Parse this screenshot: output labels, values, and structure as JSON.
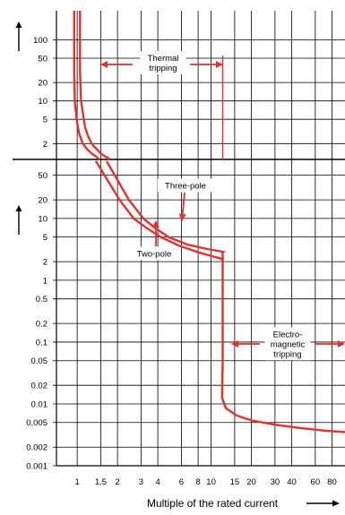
{
  "chart_data": {
    "type": "line",
    "title": "",
    "xlabel": "Multiple of the rated current",
    "ylabel": "",
    "x_scale": "log",
    "xlim": [
      0.7,
      100
    ],
    "x_ticks": [
      1,
      1.5,
      2,
      3,
      4,
      6,
      8,
      10,
      15,
      20,
      30,
      40,
      60,
      80
    ],
    "x_tick_labels": [
      "1",
      "1.5",
      "2",
      "3",
      "4",
      "6",
      "8",
      "10",
      "15",
      "20",
      "30",
      "40",
      "60",
      "80"
    ],
    "grid": true,
    "upper_panel": {
      "y_scale": "log",
      "ylim": [
        1.1,
        300
      ],
      "y_ticks": [
        2,
        5,
        10,
        20,
        50,
        100
      ],
      "y_tick_labels": [
        "2",
        "5",
        "10",
        "20",
        "50",
        "100"
      ]
    },
    "lower_panel": {
      "y_scale": "log",
      "ylim": [
        0.001,
        90
      ],
      "y_ticks": [
        0.001,
        0.002,
        0.005,
        0.01,
        0.02,
        0.05,
        0.1,
        0.2,
        0.5,
        1,
        2,
        5,
        10,
        20,
        50
      ],
      "y_tick_labels": [
        "0.001",
        "0.002",
        "0.005",
        "0.01",
        "0.02",
        "0.05",
        "0.1",
        "0.2",
        "0.5",
        "1",
        "2",
        "5",
        "10",
        "20",
        "50"
      ]
    },
    "series": [
      {
        "name": "Three-pole",
        "color": "#e53030",
        "upper_points": [
          [
            1.05,
            300
          ],
          [
            1.05,
            30
          ],
          [
            1.07,
            10
          ],
          [
            1.12,
            5
          ],
          [
            1.15,
            3.6
          ],
          [
            1.2,
            2.7
          ],
          [
            1.27,
            2.1
          ],
          [
            1.33,
            1.8
          ],
          [
            1.41,
            1.6
          ],
          [
            1.5,
            1.38
          ],
          [
            1.58,
            1.27
          ],
          [
            1.66,
            1.2
          ],
          [
            1.75,
            1.1
          ]
        ],
        "lower_points": [
          [
            1.66,
            84
          ],
          [
            1.91,
            50
          ],
          [
            2.43,
            20
          ],
          [
            3.12,
            10
          ],
          [
            3.78,
            7.1
          ],
          [
            4.82,
            5
          ],
          [
            6.6,
            3.8
          ],
          [
            9.3,
            3.2
          ],
          [
            12.2,
            2.9
          ],
          [
            12.2,
            0.05
          ],
          [
            12.1,
            0.0125
          ],
          [
            12.9,
            0.0085
          ],
          [
            15.5,
            0.0065
          ],
          [
            20,
            0.0054
          ],
          [
            30,
            0.0046
          ],
          [
            45,
            0.0041
          ],
          [
            70,
            0.0037
          ],
          [
            100,
            0.0035
          ]
        ]
      },
      {
        "name": "Two-pole",
        "color": "#e53030",
        "upper_points": [
          [
            0.95,
            300
          ],
          [
            0.95,
            30
          ],
          [
            0.96,
            10
          ],
          [
            0.99,
            5
          ],
          [
            1.03,
            3
          ],
          [
            1.1,
            2
          ],
          [
            1.19,
            1.6
          ],
          [
            1.28,
            1.38
          ],
          [
            1.36,
            1.26
          ],
          [
            1.47,
            1.1
          ]
        ],
        "lower_points": [
          [
            1.38,
            85
          ],
          [
            1.6,
            50
          ],
          [
            2.07,
            20
          ],
          [
            2.64,
            10
          ],
          [
            3.27,
            7.1
          ],
          [
            4.21,
            5
          ],
          [
            5.8,
            3.6
          ],
          [
            8.16,
            2.8
          ],
          [
            12.2,
            2.2
          ],
          [
            12.2,
            1.9
          ]
        ]
      }
    ],
    "annotations": {
      "thermal_tripping": "Thermal\ntripping",
      "three_pole": "Three-pole",
      "two_pole": "Two-pole",
      "electromagnetic_tripping": "Electro-\nmagnetic\ntripping"
    },
    "colors": {
      "curve": "#e53030",
      "arrow": "#e53030",
      "grid": "#000000"
    }
  }
}
